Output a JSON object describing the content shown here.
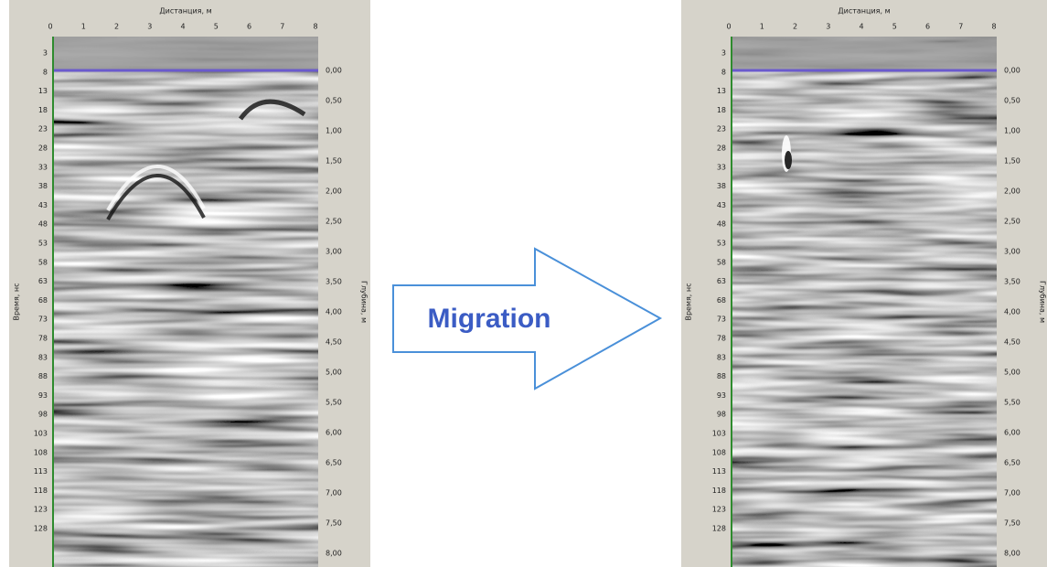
{
  "panels": [
    {
      "top_axis_title": "Дистанция, м",
      "top_ticks": [
        "0",
        "1",
        "2",
        "3",
        "4",
        "5",
        "6",
        "7",
        "8"
      ],
      "left_axis_title": "Время, нс",
      "left_ticks": [
        "3",
        "8",
        "13",
        "18",
        "23",
        "28",
        "33",
        "38",
        "43",
        "48",
        "53",
        "58",
        "63",
        "68",
        "73",
        "78",
        "83",
        "88",
        "93",
        "98",
        "103",
        "108",
        "113",
        "118",
        "123",
        "128"
      ],
      "right_axis_title": "Глубина, м",
      "right_ticks": [
        "0,00",
        "0,50",
        "1,00",
        "1,50",
        "2,00",
        "2,50",
        "3,00",
        "3,50",
        "4,00",
        "4,50",
        "5,00",
        "5,50",
        "6,00",
        "6,50",
        "7,00",
        "7,50",
        "8,00"
      ]
    },
    {
      "top_axis_title": "Дистанция, м",
      "top_ticks": [
        "0",
        "1",
        "2",
        "3",
        "4",
        "5",
        "6",
        "7",
        "8"
      ],
      "left_axis_title": "Время, нс",
      "left_ticks": [
        "3",
        "8",
        "13",
        "18",
        "23",
        "28",
        "33",
        "38",
        "43",
        "48",
        "53",
        "58",
        "63",
        "68",
        "73",
        "78",
        "83",
        "88",
        "93",
        "98",
        "103",
        "108",
        "113",
        "118",
        "123",
        "128"
      ],
      "right_axis_title": "Глубина, м",
      "right_ticks": [
        "0,00",
        "0,50",
        "1,00",
        "1,50",
        "2,00",
        "2,50",
        "3,00",
        "3,50",
        "4,00",
        "4,50",
        "5,00",
        "5,50",
        "6,00",
        "6,50",
        "7,00",
        "7,50",
        "8,00"
      ]
    }
  ],
  "arrow_label": "Migration"
}
